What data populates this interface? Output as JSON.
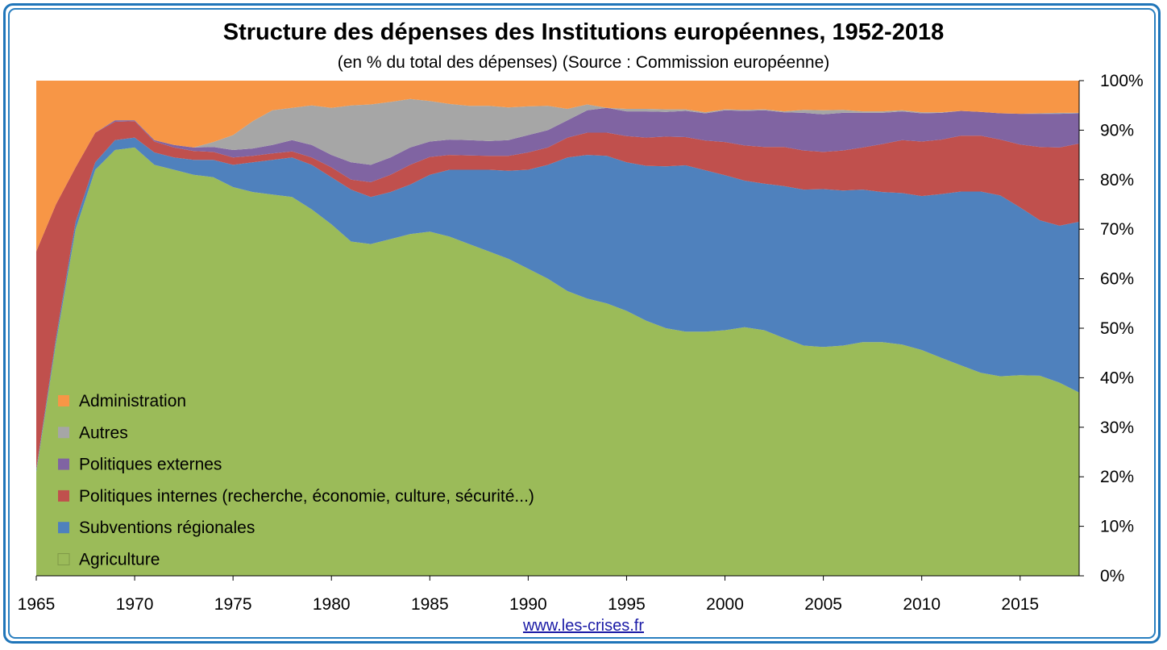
{
  "title": "Structure des dépenses des Institutions européennes, 1952-2018",
  "subtitle": "(en % du total des dépenses) (Source : Commission européenne)",
  "source": "www.les-crises.fr",
  "chart_data": {
    "type": "area",
    "stacked": true,
    "title": "Structure des dépenses des Institutions européennes, 1952-2018",
    "subtitle": "(en % du total des dépenses) (Source : Commission européenne)",
    "xlabel": "",
    "ylabel": "",
    "xlim": [
      1965,
      2018
    ],
    "ylim": [
      0,
      100
    ],
    "x_ticks": [
      1965,
      1970,
      1975,
      1980,
      1985,
      1990,
      1995,
      2000,
      2005,
      2010,
      2015
    ],
    "y_ticks": [
      "0%",
      "10%",
      "20%",
      "30%",
      "40%",
      "50%",
      "60%",
      "70%",
      "80%",
      "90%",
      "100%"
    ],
    "y_axis_side": "right",
    "grid": false,
    "legend_position": "bottom-left",
    "x": [
      1965,
      1966,
      1967,
      1968,
      1969,
      1970,
      1971,
      1972,
      1973,
      1974,
      1975,
      1976,
      1977,
      1978,
      1979,
      1980,
      1981,
      1982,
      1983,
      1984,
      1985,
      1986,
      1987,
      1988,
      1989,
      1990,
      1991,
      1992,
      1993,
      1994,
      1995,
      1996,
      1997,
      1998,
      1999,
      2000,
      2001,
      2002,
      2003,
      2004,
      2005,
      2006,
      2007,
      2008,
      2009,
      2010,
      2011,
      2012,
      2013,
      2014,
      2015,
      2016,
      2017,
      2018
    ],
    "series": [
      {
        "name": "Agriculture",
        "color": "#9bbb59",
        "values": [
          21,
          47,
          70,
          82,
          86,
          86.5,
          83,
          82,
          81,
          80.5,
          78.5,
          77.5,
          77,
          76.5,
          74,
          71,
          67.5,
          67,
          68,
          69,
          69.5,
          68.5,
          67,
          65.5,
          64,
          62,
          60,
          57.5,
          56,
          55,
          53.5,
          51.5,
          50,
          49.3,
          49.3,
          49.6,
          50.2,
          49.6,
          48,
          46.5,
          46.2,
          46.5,
          47.2,
          47.2,
          46.7,
          45.6,
          44,
          42.5,
          41,
          40.3,
          40.5,
          40.4,
          39,
          37
        ]
      },
      {
        "name": "Subventions régionales",
        "color": "#4f81bd",
        "values": [
          0.5,
          1,
          1.5,
          1.5,
          2,
          2,
          2.5,
          2.5,
          3,
          3.5,
          4.5,
          6,
          7,
          8,
          9,
          9.5,
          10.5,
          9.5,
          9.5,
          10,
          11.5,
          13.5,
          15,
          16.5,
          17.8,
          20,
          23,
          27,
          29,
          29.8,
          30,
          31.3,
          32.7,
          33.6,
          32.6,
          31.3,
          29.6,
          29.6,
          30.7,
          31.5,
          31.9,
          31.3,
          30.8,
          30.3,
          30.6,
          31.1,
          33.1,
          35.1,
          36.6,
          36.5,
          33.9,
          31.4,
          31.7,
          34.5
        ]
      },
      {
        "name": "Politiques internes (recherche, économie, culture, sécurité...)",
        "color": "#c0504d",
        "values": [
          44,
          27,
          11,
          6,
          3.7,
          3.3,
          2.2,
          2,
          1.8,
          1.6,
          1.5,
          1.3,
          1.3,
          1.2,
          1.5,
          2,
          2,
          3,
          3.5,
          4,
          3.6,
          3,
          2.9,
          2.8,
          3,
          3.5,
          3.5,
          4,
          4.5,
          4.7,
          5.3,
          5.7,
          6,
          5.7,
          6,
          6.7,
          7.1,
          7.4,
          7.9,
          7.9,
          7.5,
          8.1,
          8.5,
          9.7,
          10.7,
          11,
          11,
          11.3,
          11.3,
          11.3,
          12.7,
          14.8,
          15.8,
          15.8
        ]
      },
      {
        "name": "Politiques externes",
        "color": "#8064a2",
        "values": [
          0,
          0,
          0,
          0,
          0.3,
          0.2,
          0.3,
          0.5,
          0.7,
          1,
          1.5,
          1.5,
          1.7,
          2.3,
          2.5,
          2.5,
          3.5,
          3.5,
          3.5,
          3.5,
          3.1,
          3.1,
          3.1,
          3,
          3.2,
          3.5,
          3.5,
          3.5,
          4.5,
          5,
          5,
          5.3,
          5,
          5.3,
          5.5,
          6.4,
          7,
          7.4,
          7,
          7.6,
          7.6,
          7.6,
          7,
          6.3,
          5.8,
          5.7,
          5.4,
          5,
          4.8,
          5.3,
          6.2,
          6.7,
          6.8,
          6.1
        ]
      },
      {
        "name": "Autres",
        "color": "#a6a6a6",
        "values": [
          0,
          0,
          0,
          0,
          0,
          0,
          0,
          0,
          0,
          1,
          3,
          5.5,
          7,
          6.5,
          8,
          9.5,
          11.5,
          12.2,
          11.2,
          9.8,
          8.2,
          7.2,
          6.9,
          7.1,
          6.6,
          5.8,
          4.9,
          2.3,
          1.2,
          0,
          0.5,
          0.5,
          0.5,
          0.3,
          0.2,
          0.2,
          0.2,
          0.2,
          0.2,
          0.6,
          0.8,
          0.6,
          0.3,
          0.3,
          0.2,
          0.2,
          0.1,
          0,
          0,
          0,
          0,
          0.1,
          0.2,
          0.1
        ]
      },
      {
        "name": "Administration",
        "color": "#f79646",
        "values": [
          34.5,
          25,
          17.5,
          10.5,
          8,
          8,
          12,
          13,
          13.5,
          12.4,
          11,
          8.2,
          6,
          5.5,
          5,
          5.5,
          5,
          4.8,
          4.3,
          4.7,
          4.1,
          4.7,
          5.1,
          5.1,
          5.4,
          5.2,
          5.1,
          5.7,
          4.8,
          5.5,
          5.7,
          5.7,
          5.8,
          5.8,
          6.4,
          5.8,
          5.9,
          5.8,
          6.2,
          5.9,
          6,
          5.9,
          6.2,
          6.2,
          6,
          6.4,
          6.4,
          6.1,
          6.3,
          6.6,
          6.7,
          6.6,
          6.5,
          6.5
        ]
      }
    ]
  }
}
